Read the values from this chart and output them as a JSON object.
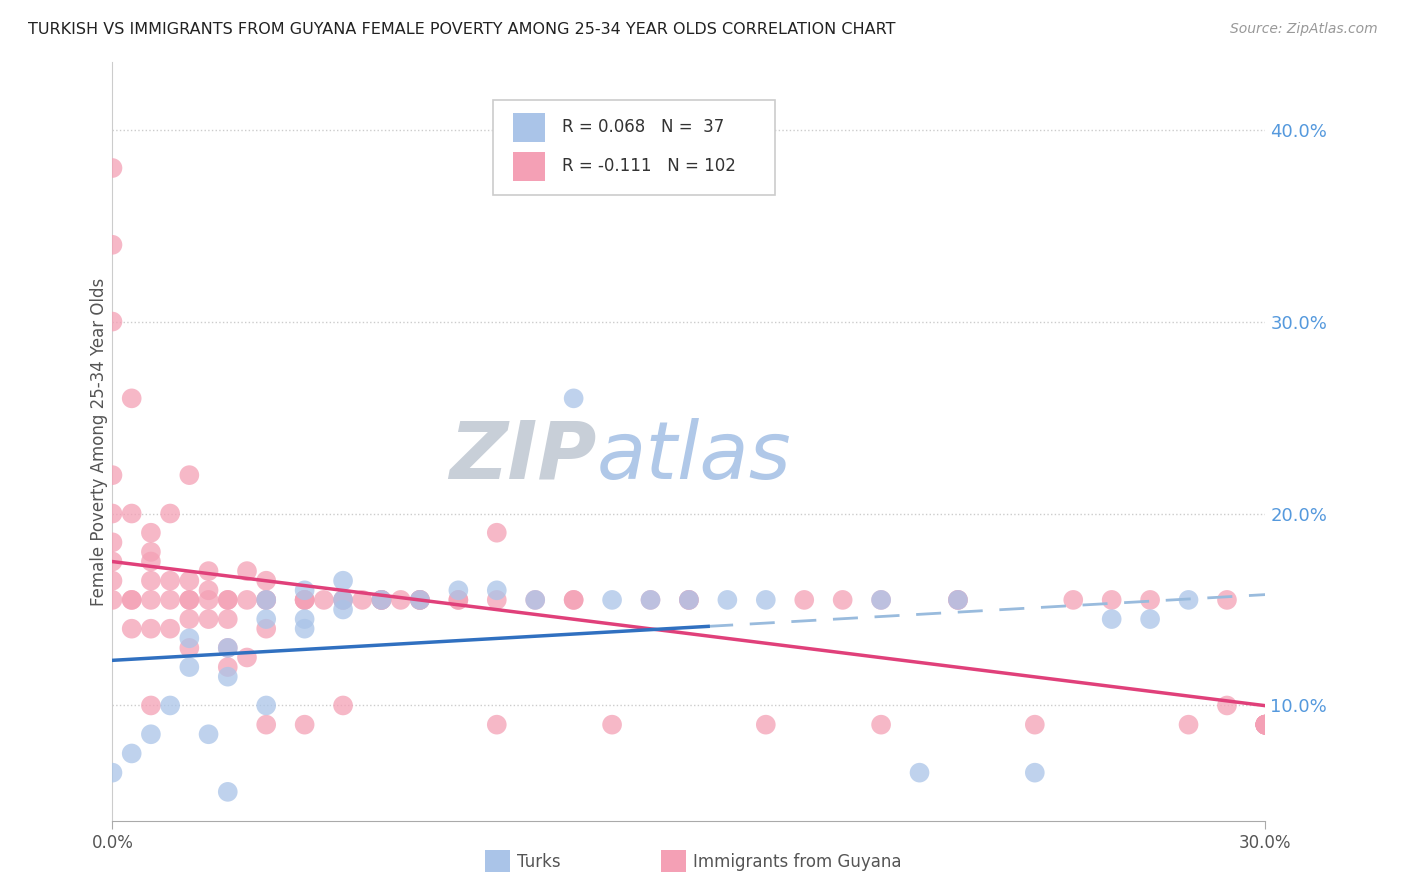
{
  "title": "TURKISH VS IMMIGRANTS FROM GUYANA FEMALE POVERTY AMONG 25-34 YEAR OLDS CORRELATION CHART",
  "source": "Source: ZipAtlas.com",
  "ylabel": "Female Poverty Among 25-34 Year Olds",
  "y_tick_labels": [
    "10.0%",
    "20.0%",
    "30.0%",
    "40.0%"
  ],
  "y_tick_values": [
    0.1,
    0.2,
    0.3,
    0.4
  ],
  "x_range": [
    0.0,
    0.3
  ],
  "y_range": [
    0.04,
    0.435
  ],
  "turks_R": 0.068,
  "turks_N": 37,
  "guyana_R": -0.111,
  "guyana_N": 102,
  "turks_color": "#aac4e8",
  "guyana_color": "#f4a0b5",
  "turks_line_color": "#3070c0",
  "guyana_line_color": "#e0407a",
  "extrapolation_color": "#99bbdd",
  "background_color": "#ffffff",
  "title_color": "#222222",
  "watermark_zip_color": "#c8cfd8",
  "watermark_atlas_color": "#b0c8e8",
  "axis_tick_color": "#5599dd",
  "grid_color": "#cccccc",
  "turks_x": [
    0.0,
    0.005,
    0.01,
    0.015,
    0.02,
    0.02,
    0.025,
    0.03,
    0.03,
    0.04,
    0.04,
    0.05,
    0.05,
    0.06,
    0.06,
    0.07,
    0.08,
    0.09,
    0.1,
    0.11,
    0.12,
    0.13,
    0.14,
    0.15,
    0.16,
    0.17,
    0.2,
    0.21,
    0.22,
    0.24,
    0.26,
    0.27,
    0.28,
    0.03,
    0.04,
    0.05,
    0.06
  ],
  "turks_y": [
    0.065,
    0.075,
    0.085,
    0.1,
    0.12,
    0.135,
    0.085,
    0.13,
    0.115,
    0.1,
    0.145,
    0.16,
    0.145,
    0.15,
    0.155,
    0.155,
    0.155,
    0.16,
    0.16,
    0.155,
    0.26,
    0.155,
    0.155,
    0.155,
    0.155,
    0.155,
    0.155,
    0.065,
    0.155,
    0.065,
    0.145,
    0.145,
    0.155,
    0.055,
    0.155,
    0.14,
    0.165
  ],
  "guyana_x": [
    0.0,
    0.0,
    0.0,
    0.0,
    0.0,
    0.0,
    0.0,
    0.005,
    0.005,
    0.005,
    0.005,
    0.01,
    0.01,
    0.01,
    0.01,
    0.01,
    0.015,
    0.015,
    0.015,
    0.02,
    0.02,
    0.02,
    0.02,
    0.025,
    0.025,
    0.025,
    0.03,
    0.03,
    0.03,
    0.035,
    0.035,
    0.04,
    0.04,
    0.04,
    0.05,
    0.05,
    0.055,
    0.06,
    0.065,
    0.07,
    0.075,
    0.08,
    0.09,
    0.1,
    0.1,
    0.11,
    0.12,
    0.13,
    0.14,
    0.15,
    0.17,
    0.19,
    0.2,
    0.22,
    0.24,
    0.26,
    0.28,
    0.29,
    0.005,
    0.01,
    0.015,
    0.02,
    0.025,
    0.03,
    0.035,
    0.04,
    0.05,
    0.06,
    0.07,
    0.08,
    0.0,
    0.0,
    0.01,
    0.02,
    0.03,
    0.04,
    0.05,
    0.06,
    0.07,
    0.08,
    0.09,
    0.1,
    0.12,
    0.15,
    0.18,
    0.2,
    0.22,
    0.25,
    0.27,
    0.29,
    0.3,
    0.3,
    0.3,
    0.3,
    0.3,
    0.3,
    0.3,
    0.3,
    0.3,
    0.3,
    0.3,
    0.3
  ],
  "guyana_y": [
    0.155,
    0.165,
    0.175,
    0.185,
    0.2,
    0.22,
    0.3,
    0.14,
    0.155,
    0.2,
    0.26,
    0.1,
    0.14,
    0.165,
    0.18,
    0.19,
    0.14,
    0.165,
    0.2,
    0.13,
    0.155,
    0.165,
    0.22,
    0.145,
    0.16,
    0.17,
    0.12,
    0.145,
    0.155,
    0.125,
    0.17,
    0.09,
    0.14,
    0.165,
    0.09,
    0.155,
    0.155,
    0.1,
    0.155,
    0.155,
    0.155,
    0.155,
    0.155,
    0.19,
    0.09,
    0.155,
    0.155,
    0.09,
    0.155,
    0.155,
    0.09,
    0.155,
    0.09,
    0.155,
    0.09,
    0.155,
    0.09,
    0.155,
    0.155,
    0.175,
    0.155,
    0.145,
    0.155,
    0.13,
    0.155,
    0.155,
    0.155,
    0.155,
    0.155,
    0.155,
    0.38,
    0.34,
    0.155,
    0.155,
    0.155,
    0.155,
    0.155,
    0.155,
    0.155,
    0.155,
    0.155,
    0.155,
    0.155,
    0.155,
    0.155,
    0.155,
    0.155,
    0.155,
    0.155,
    0.1,
    0.09,
    0.09,
    0.09,
    0.09,
    0.09,
    0.09,
    0.09,
    0.09,
    0.09,
    0.09,
    0.09,
    0.09
  ]
}
